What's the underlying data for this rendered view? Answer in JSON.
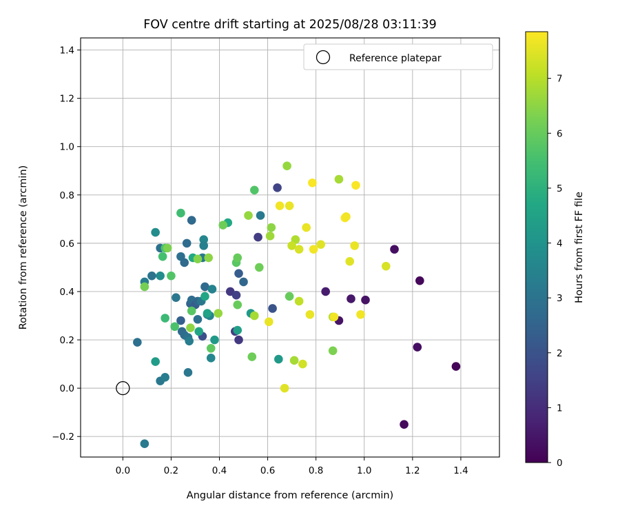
{
  "chart_data": {
    "type": "scatter",
    "title": "FOV centre drift starting at 2025/08/28 03:11:39",
    "xlabel": "Angular distance from reference (arcmin)",
    "ylabel": "Rotation from reference (arcmin)",
    "xlim": [
      -0.175,
      1.56
    ],
    "ylim": [
      -0.285,
      1.45
    ],
    "xticks": [
      0.0,
      0.2,
      0.4,
      0.6,
      0.8,
      1.0,
      1.2,
      1.4
    ],
    "xtick_labels": [
      "0.0",
      "0.2",
      "0.4",
      "0.6",
      "0.8",
      "1.0",
      "1.2",
      "1.4"
    ],
    "yticks": [
      -0.2,
      0.0,
      0.2,
      0.4,
      0.6,
      0.8,
      1.0,
      1.2,
      1.4
    ],
    "ytick_labels": [
      "−0.2",
      "0.0",
      "0.2",
      "0.4",
      "0.6",
      "0.8",
      "1.0",
      "1.2",
      "1.4"
    ],
    "grid": true,
    "legend": {
      "position": "top-right",
      "entries": [
        "Reference platepar"
      ]
    },
    "reference_point": {
      "x": 0.0,
      "y": 0.0
    },
    "colorbar": {
      "label": "Hours from first FF file",
      "colormap": "viridis",
      "range": [
        0,
        7.85
      ],
      "ticks": [
        0,
        1,
        2,
        3,
        4,
        5,
        6,
        7
      ],
      "tick_labels": [
        "0",
        "1",
        "2",
        "3",
        "4",
        "5",
        "6",
        "7"
      ]
    },
    "points": [
      {
        "x": 1.38,
        "y": 0.09,
        "c": 0.1
      },
      {
        "x": 1.165,
        "y": -0.15,
        "c": 0.2
      },
      {
        "x": 1.23,
        "y": 0.445,
        "c": 0.15
      },
      {
        "x": 1.22,
        "y": 0.17,
        "c": 0.3
      },
      {
        "x": 1.125,
        "y": 0.575,
        "c": 0.3
      },
      {
        "x": 1.005,
        "y": 0.365,
        "c": 0.4
      },
      {
        "x": 0.945,
        "y": 0.37,
        "c": 0.5
      },
      {
        "x": 0.895,
        "y": 0.28,
        "c": 0.4
      },
      {
        "x": 0.84,
        "y": 0.4,
        "c": 0.6
      },
      {
        "x": 0.64,
        "y": 0.83,
        "c": 1.6
      },
      {
        "x": 0.56,
        "y": 0.625,
        "c": 1.4
      },
      {
        "x": 0.62,
        "y": 0.33,
        "c": 2.0
      },
      {
        "x": 0.48,
        "y": 0.2,
        "c": 1.3
      },
      {
        "x": 0.465,
        "y": 0.235,
        "c": 1.4
      },
      {
        "x": 0.445,
        "y": 0.4,
        "c": 1.3
      },
      {
        "x": 0.47,
        "y": 0.385,
        "c": 1.5
      },
      {
        "x": 0.48,
        "y": 0.475,
        "c": 2.3
      },
      {
        "x": 0.5,
        "y": 0.44,
        "c": 2.6
      },
      {
        "x": 0.33,
        "y": 0.215,
        "c": 1.9
      },
      {
        "x": 0.24,
        "y": 0.28,
        "c": 2.4
      },
      {
        "x": 0.245,
        "y": 0.235,
        "c": 2.7
      },
      {
        "x": 0.255,
        "y": 0.22,
        "c": 2.8
      },
      {
        "x": 0.27,
        "y": 0.21,
        "c": 3.0
      },
      {
        "x": 0.275,
        "y": 0.195,
        "c": 3.3
      },
      {
        "x": 0.28,
        "y": 0.35,
        "c": 2.5
      },
      {
        "x": 0.285,
        "y": 0.365,
        "c": 2.8
      },
      {
        "x": 0.3,
        "y": 0.345,
        "c": 2.3
      },
      {
        "x": 0.31,
        "y": 0.36,
        "c": 2.6
      },
      {
        "x": 0.31,
        "y": 0.285,
        "c": 2.9
      },
      {
        "x": 0.325,
        "y": 0.36,
        "c": 3.1
      },
      {
        "x": 0.33,
        "y": 0.54,
        "c": 3.2
      },
      {
        "x": 0.34,
        "y": 0.42,
        "c": 2.7
      },
      {
        "x": 0.35,
        "y": 0.305,
        "c": 3.2
      },
      {
        "x": 0.36,
        "y": 0.3,
        "c": 3.5
      },
      {
        "x": 0.37,
        "y": 0.41,
        "c": 3.5
      },
      {
        "x": 0.365,
        "y": 0.125,
        "c": 3.6
      },
      {
        "x": 0.24,
        "y": 0.545,
        "c": 2.9
      },
      {
        "x": 0.255,
        "y": 0.52,
        "c": 2.7
      },
      {
        "x": 0.265,
        "y": 0.6,
        "c": 2.8
      },
      {
        "x": 0.285,
        "y": 0.695,
        "c": 2.7
      },
      {
        "x": 0.335,
        "y": 0.615,
        "c": 3.6
      },
      {
        "x": 0.335,
        "y": 0.59,
        "c": 3.4
      },
      {
        "x": 0.57,
        "y": 0.715,
        "c": 3.2
      },
      {
        "x": 0.22,
        "y": 0.375,
        "c": 3.1
      },
      {
        "x": 0.155,
        "y": 0.58,
        "c": 2.9
      },
      {
        "x": 0.12,
        "y": 0.465,
        "c": 3.0
      },
      {
        "x": 0.09,
        "y": 0.44,
        "c": 3.3
      },
      {
        "x": 0.06,
        "y": 0.19,
        "c": 2.9
      },
      {
        "x": 0.09,
        "y": -0.23,
        "c": 3.2
      },
      {
        "x": 0.155,
        "y": 0.03,
        "c": 3.1
      },
      {
        "x": 0.175,
        "y": 0.045,
        "c": 3.3
      },
      {
        "x": 0.27,
        "y": 0.065,
        "c": 3.1
      },
      {
        "x": 0.135,
        "y": 0.645,
        "c": 3.8
      },
      {
        "x": 0.155,
        "y": 0.465,
        "c": 3.8
      },
      {
        "x": 0.135,
        "y": 0.11,
        "c": 4.3
      },
      {
        "x": 0.35,
        "y": 0.31,
        "c": 4.5
      },
      {
        "x": 0.38,
        "y": 0.2,
        "c": 4.2
      },
      {
        "x": 0.315,
        "y": 0.235,
        "c": 4.6
      },
      {
        "x": 0.29,
        "y": 0.54,
        "c": 4.7
      },
      {
        "x": 0.34,
        "y": 0.38,
        "c": 4.6
      },
      {
        "x": 0.475,
        "y": 0.24,
        "c": 4.4
      },
      {
        "x": 0.53,
        "y": 0.31,
        "c": 4.2
      },
      {
        "x": 0.645,
        "y": 0.12,
        "c": 4.2
      },
      {
        "x": 0.435,
        "y": 0.685,
        "c": 4.7
      },
      {
        "x": 0.24,
        "y": 0.725,
        "c": 5.4
      },
      {
        "x": 0.175,
        "y": 0.58,
        "c": 5.6
      },
      {
        "x": 0.165,
        "y": 0.545,
        "c": 5.5
      },
      {
        "x": 0.2,
        "y": 0.465,
        "c": 5.7
      },
      {
        "x": 0.175,
        "y": 0.29,
        "c": 5.3
      },
      {
        "x": 0.215,
        "y": 0.255,
        "c": 5.6
      },
      {
        "x": 0.285,
        "y": 0.32,
        "c": 5.8
      },
      {
        "x": 0.365,
        "y": 0.165,
        "c": 5.9
      },
      {
        "x": 0.415,
        "y": 0.675,
        "c": 6.1
      },
      {
        "x": 0.47,
        "y": 0.52,
        "c": 5.8
      },
      {
        "x": 0.475,
        "y": 0.54,
        "c": 6.0
      },
      {
        "x": 0.475,
        "y": 0.345,
        "c": 6.0
      },
      {
        "x": 0.545,
        "y": 0.82,
        "c": 5.7
      },
      {
        "x": 0.565,
        "y": 0.5,
        "c": 6.1
      },
      {
        "x": 0.535,
        "y": 0.13,
        "c": 6.1
      },
      {
        "x": 0.69,
        "y": 0.38,
        "c": 6.0
      },
      {
        "x": 0.87,
        "y": 0.155,
        "c": 6.3
      },
      {
        "x": 0.09,
        "y": 0.42,
        "c": 6.2
      },
      {
        "x": 0.185,
        "y": 0.58,
        "c": 6.3
      },
      {
        "x": 0.28,
        "y": 0.25,
        "c": 6.5
      },
      {
        "x": 0.31,
        "y": 0.535,
        "c": 6.4
      },
      {
        "x": 0.355,
        "y": 0.54,
        "c": 6.5
      },
      {
        "x": 0.395,
        "y": 0.31,
        "c": 6.6
      },
      {
        "x": 0.52,
        "y": 0.715,
        "c": 6.6
      },
      {
        "x": 0.545,
        "y": 0.3,
        "c": 6.8
      },
      {
        "x": 0.61,
        "y": 0.63,
        "c": 6.7
      },
      {
        "x": 0.615,
        "y": 0.665,
        "c": 6.5
      },
      {
        "x": 0.68,
        "y": 0.92,
        "c": 6.6
      },
      {
        "x": 0.715,
        "y": 0.615,
        "c": 6.9
      },
      {
        "x": 0.71,
        "y": 0.115,
        "c": 6.8
      },
      {
        "x": 0.87,
        "y": 0.295,
        "c": 6.9
      },
      {
        "x": 0.895,
        "y": 0.865,
        "c": 6.8
      },
      {
        "x": 0.73,
        "y": 0.36,
        "c": 7.1
      },
      {
        "x": 0.7,
        "y": 0.59,
        "c": 7.2
      },
      {
        "x": 0.745,
        "y": 0.1,
        "c": 7.3
      },
      {
        "x": 0.67,
        "y": 0.0,
        "c": 7.5
      },
      {
        "x": 0.605,
        "y": 0.275,
        "c": 7.6
      },
      {
        "x": 0.65,
        "y": 0.755,
        "c": 7.7
      },
      {
        "x": 0.69,
        "y": 0.755,
        "c": 7.6
      },
      {
        "x": 0.73,
        "y": 0.575,
        "c": 7.4
      },
      {
        "x": 0.76,
        "y": 0.665,
        "c": 7.6
      },
      {
        "x": 0.775,
        "y": 0.305,
        "c": 7.6
      },
      {
        "x": 0.785,
        "y": 0.85,
        "c": 7.8
      },
      {
        "x": 0.79,
        "y": 0.575,
        "c": 7.7
      },
      {
        "x": 0.82,
        "y": 0.595,
        "c": 7.5
      },
      {
        "x": 0.875,
        "y": 0.295,
        "c": 7.7
      },
      {
        "x": 0.92,
        "y": 0.705,
        "c": 7.8
      },
      {
        "x": 0.925,
        "y": 0.71,
        "c": 7.7
      },
      {
        "x": 0.94,
        "y": 0.525,
        "c": 7.5
      },
      {
        "x": 0.96,
        "y": 0.59,
        "c": 7.6
      },
      {
        "x": 0.965,
        "y": 0.84,
        "c": 7.8
      },
      {
        "x": 0.985,
        "y": 0.305,
        "c": 7.7
      },
      {
        "x": 1.09,
        "y": 0.505,
        "c": 7.4
      }
    ]
  }
}
